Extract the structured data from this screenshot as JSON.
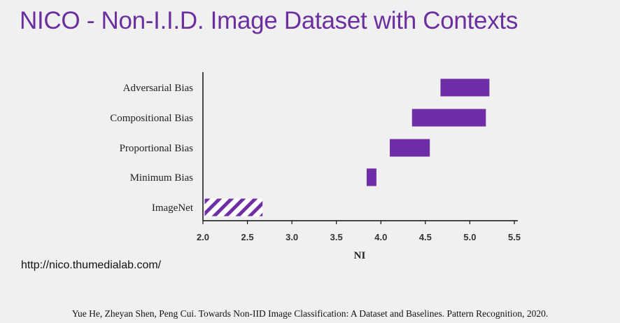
{
  "title": "NICO - Non-I.I.D. Image Dataset with Contexts",
  "url": "http://nico.thumedialab.com/",
  "citation": "Yue He, Zheyan Shen, Peng Cui. Towards Non-IID Image Classification: A Dataset and Baselines. Pattern Recognition, 2020.",
  "colors": {
    "bar": "#6f2da8",
    "title": "#6b2fa0"
  },
  "chart_data": {
    "type": "bar",
    "orientation": "horizontal-range",
    "categories": [
      "Adversarial Bias",
      "Compositional Bias",
      "Proportional Bias",
      "Minimum Bias",
      "ImageNet"
    ],
    "series": [
      {
        "values": [
          {
            "category": "Adversarial Bias",
            "start": 4.67,
            "end": 5.22
          },
          {
            "category": "Compositional Bias",
            "start": 4.35,
            "end": 5.18
          },
          {
            "category": "Proportional Bias",
            "start": 4.1,
            "end": 4.55
          },
          {
            "category": "Minimum Bias",
            "start": 3.84,
            "end": 3.95
          },
          {
            "category": "ImageNet",
            "start": 2.02,
            "end": 2.67,
            "pattern": "hatched"
          }
        ]
      }
    ],
    "xlabel": "NI",
    "ylabel": "",
    "xticks": [
      "2.0",
      "2.5",
      "3.0",
      "3.5",
      "4.0",
      "4.5",
      "5.0",
      "5.5"
    ],
    "xlim": [
      2.0,
      5.5
    ],
    "grid": false
  }
}
